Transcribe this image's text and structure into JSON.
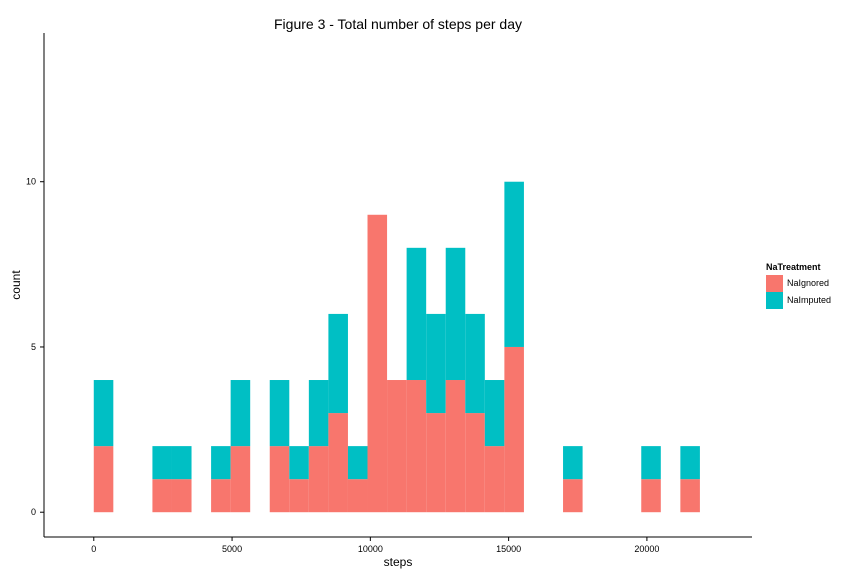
{
  "chart_data": {
    "type": "bar",
    "stacked": true,
    "title": "Figure 3 - Total number of steps per day",
    "xlabel": "steps",
    "ylabel": "count",
    "xlim": [
      -1800,
      23800
    ],
    "ylim": [
      -0.75,
      14.5
    ],
    "x_ticks": [
      0,
      5000,
      10000,
      15000,
      20000
    ],
    "y_ticks": [
      0,
      5,
      10
    ],
    "bin_width": 707,
    "bin_centers": [
      353,
      1060,
      1767,
      2474,
      3181,
      3888,
      4595,
      5302,
      6009,
      6716,
      7423,
      8130,
      8837,
      9544,
      10251,
      10958,
      11665,
      12372,
      13079,
      13786,
      14493,
      15200,
      15907,
      16614,
      17321,
      18028,
      18735,
      19442,
      20149,
      20856,
      21563
    ],
    "series": [
      {
        "name": "NaIgnored",
        "color": "#F8766D",
        "values": [
          2,
          0,
          0,
          1,
          1,
          0,
          1,
          2,
          0,
          2,
          1,
          2,
          3,
          1,
          9,
          4,
          4,
          3,
          4,
          3,
          2,
          5,
          0,
          0,
          1,
          0,
          0,
          0,
          1,
          0,
          1
        ]
      },
      {
        "name": "NaImputed",
        "color": "#00BFC4",
        "values": [
          2,
          0,
          0,
          1,
          1,
          0,
          1,
          2,
          0,
          2,
          1,
          2,
          3,
          1,
          0,
          0,
          4,
          3,
          4,
          3,
          2,
          5,
          0,
          0,
          1,
          0,
          0,
          0,
          1,
          0,
          1
        ]
      }
    ],
    "legend": {
      "title": "NaTreatment",
      "position": "right"
    }
  }
}
